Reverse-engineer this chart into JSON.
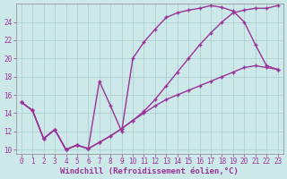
{
  "xlabel": "Windchill (Refroidissement éolien,°C)",
  "background_color": "#cce8e8",
  "grid_color": "#aacccc",
  "line_color": "#993399",
  "xlim": [
    -0.5,
    23.5
  ],
  "ylim": [
    9.5,
    26.0
  ],
  "xticks": [
    0,
    1,
    2,
    3,
    4,
    5,
    6,
    7,
    8,
    9,
    10,
    11,
    12,
    13,
    14,
    15,
    16,
    17,
    18,
    19,
    20,
    21,
    22,
    23
  ],
  "yticks": [
    10,
    12,
    14,
    16,
    18,
    20,
    22,
    24
  ],
  "line1": {
    "x": [
      0,
      1,
      2,
      3,
      4,
      5,
      6,
      7,
      8,
      9,
      10,
      11,
      12,
      13,
      14,
      15,
      16,
      17,
      18,
      19,
      20,
      21,
      22,
      23
    ],
    "y": [
      15.2,
      14.3,
      11.2,
      12.2,
      10.0,
      10.5,
      10.1,
      17.5,
      14.8,
      12.0,
      20.0,
      21.8,
      23.2,
      24.5,
      25.0,
      25.3,
      25.5,
      25.8,
      25.6,
      25.2,
      24.0,
      21.5,
      19.2,
      18.8
    ]
  },
  "line2": {
    "x": [
      0,
      1,
      2,
      3,
      4,
      5,
      6,
      7,
      8,
      9,
      10,
      11,
      12,
      13,
      14,
      15,
      16,
      17,
      18,
      19,
      20,
      21,
      22,
      23
    ],
    "y": [
      15.2,
      14.3,
      11.2,
      12.2,
      10.0,
      10.5,
      10.1,
      10.8,
      11.5,
      12.3,
      13.2,
      14.2,
      15.5,
      17.0,
      18.5,
      20.0,
      21.5,
      22.8,
      24.0,
      25.0,
      25.3,
      25.5,
      25.5,
      25.8
    ]
  },
  "line3": {
    "x": [
      0,
      1,
      2,
      3,
      4,
      5,
      6,
      7,
      8,
      9,
      10,
      11,
      12,
      13,
      14,
      15,
      16,
      17,
      18,
      19,
      20,
      21,
      22,
      23
    ],
    "y": [
      15.2,
      14.3,
      11.2,
      12.2,
      10.0,
      10.5,
      10.1,
      10.8,
      11.5,
      12.3,
      13.2,
      14.0,
      14.8,
      15.5,
      16.0,
      16.5,
      17.0,
      17.5,
      18.0,
      18.5,
      19.0,
      19.2,
      19.0,
      18.8
    ]
  },
  "marker": "+",
  "markersize": 3,
  "linewidth": 1.0,
  "xlabel_fontsize": 6.5,
  "tick_fontsize": 5.5
}
